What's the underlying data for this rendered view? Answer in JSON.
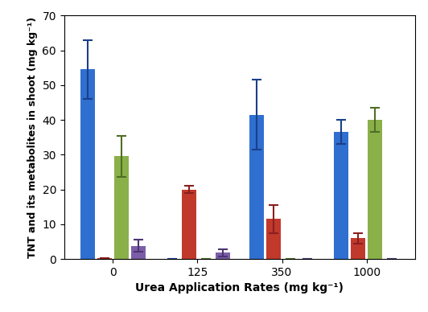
{
  "chart_data": {
    "type": "bar",
    "x_label": "Urea Application Rates (mg kg⁻¹)",
    "y_label": "TNT and its metabolites in shoot (mg kg⁻¹)",
    "categories": [
      "0",
      "125",
      "350",
      "1000"
    ],
    "series": [
      {
        "color": "#2f6fd0",
        "values": [
          54.5,
          0,
          41.5,
          36.5
        ],
        "errors": [
          8.5,
          0,
          10,
          3.5
        ]
      },
      {
        "color": "#c0392b",
        "values": [
          0.2,
          20,
          11.5,
          6
        ],
        "errors": [
          0,
          1,
          4,
          1.5
        ]
      },
      {
        "color": "#8ab04a",
        "values": [
          29.5,
          0,
          0,
          40
        ],
        "errors": [
          5.8,
          0,
          0,
          3.5
        ]
      },
      {
        "color": "#7b5ea7",
        "values": [
          3.8,
          1.8,
          0,
          0
        ],
        "errors": [
          1.8,
          1,
          0,
          0
        ]
      }
    ],
    "ylim": [
      0,
      70
    ],
    "yticks": [
      0,
      10,
      20,
      30,
      40,
      50,
      60,
      70
    ],
    "grid": false
  }
}
